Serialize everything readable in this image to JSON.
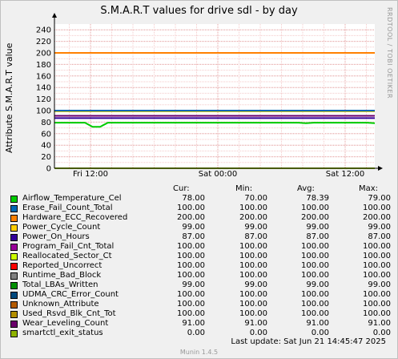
{
  "title": "S.M.A.R.T values for drive sdl - by day",
  "vertical_label": "RRDTOOL / TOBI OETIKER",
  "chart_data": {
    "type": "line",
    "title": "S.M.A.R.T values for drive sdl - by day",
    "ylabel": "Attribute S.M.A.R.T value",
    "xlabel": "",
    "ylim": [
      0,
      250
    ],
    "yticks": [
      0,
      20,
      40,
      60,
      80,
      100,
      120,
      140,
      160,
      180,
      200,
      220,
      240
    ],
    "xticks": [
      "Fri 12:00",
      "Sat 00:00",
      "Sat 12:00"
    ],
    "grid": true,
    "series": [
      {
        "name": "Airflow_Temperature_Cel",
        "color": "#00cc00",
        "cur": "78.00",
        "min": "70.00",
        "avg": "78.39",
        "max": "79.00",
        "values": [
          79,
          79,
          79,
          79,
          79,
          72,
          72,
          79,
          79,
          79,
          79,
          79,
          79,
          79,
          79,
          79,
          79,
          79,
          79,
          79,
          79,
          79,
          79,
          79,
          79,
          79,
          79,
          79,
          79,
          79,
          79,
          79,
          79,
          78,
          79,
          79,
          79,
          79,
          79,
          79,
          79,
          79,
          78
        ]
      },
      {
        "name": "Erase_Fail_Count_Total",
        "color": "#0066b3",
        "cur": "100.00",
        "min": "100.00",
        "avg": "100.00",
        "max": "100.00",
        "values": [
          100,
          100
        ]
      },
      {
        "name": "Hardware_ECC_Recovered",
        "color": "#ff8000",
        "cur": "200.00",
        "min": "200.00",
        "avg": "200.00",
        "max": "200.00",
        "values": [
          200,
          200
        ]
      },
      {
        "name": "Power_Cycle_Count",
        "color": "#ffcc00",
        "cur": "99.00",
        "min": "99.00",
        "avg": "99.00",
        "max": "99.00",
        "values": [
          99,
          99
        ]
      },
      {
        "name": "Power_On_Hours",
        "color": "#330099",
        "cur": "87.00",
        "min": "87.00",
        "avg": "87.00",
        "max": "87.00",
        "values": [
          87,
          87
        ]
      },
      {
        "name": "Program_Fail_Cnt_Total",
        "color": "#990099",
        "cur": "100.00",
        "min": "100.00",
        "avg": "100.00",
        "max": "100.00",
        "values": [
          100,
          100
        ]
      },
      {
        "name": "Reallocated_Sector_Ct",
        "color": "#ccff00",
        "cur": "100.00",
        "min": "100.00",
        "avg": "100.00",
        "max": "100.00",
        "values": [
          100,
          100
        ]
      },
      {
        "name": "Reported_Uncorrect",
        "color": "#ff0000",
        "cur": "100.00",
        "min": "100.00",
        "avg": "100.00",
        "max": "100.00",
        "values": [
          100,
          100
        ]
      },
      {
        "name": "Runtime_Bad_Block",
        "color": "#808080",
        "cur": "100.00",
        "min": "100.00",
        "avg": "100.00",
        "max": "100.00",
        "values": [
          100,
          100
        ]
      },
      {
        "name": "Total_LBAs_Written",
        "color": "#008f00",
        "cur": "99.00",
        "min": "99.00",
        "avg": "99.00",
        "max": "99.00",
        "values": [
          99,
          99
        ]
      },
      {
        "name": "UDMA_CRC_Error_Count",
        "color": "#00487d",
        "cur": "100.00",
        "min": "100.00",
        "avg": "100.00",
        "max": "100.00",
        "values": [
          100,
          100
        ]
      },
      {
        "name": "Unknown_Attribute",
        "color": "#b35a00",
        "cur": "100.00",
        "min": "100.00",
        "avg": "100.00",
        "max": "100.00",
        "values": [
          100,
          100
        ]
      },
      {
        "name": "Used_Rsvd_Blk_Cnt_Tot",
        "color": "#b38f00",
        "cur": "100.00",
        "min": "100.00",
        "avg": "100.00",
        "max": "100.00",
        "values": [
          100,
          100
        ]
      },
      {
        "name": "Wear_Leveling_Count",
        "color": "#6b006b",
        "cur": "91.00",
        "min": "91.00",
        "avg": "91.00",
        "max": "91.00",
        "values": [
          91,
          91
        ]
      },
      {
        "name": "smartctl_exit_status",
        "color": "#8fb300",
        "cur": "0.00",
        "min": "0.00",
        "avg": "0.00",
        "max": "0.00",
        "values": [
          0,
          0
        ]
      }
    ]
  },
  "legend": {
    "headers": {
      "cur": "Cur:",
      "min": "Min:",
      "avg": "Avg:",
      "max": "Max:"
    }
  },
  "footer": {
    "last_update": "Last update:  Sat Jun 21 14:45:47 2025",
    "version": "Munin 1.4.5"
  }
}
